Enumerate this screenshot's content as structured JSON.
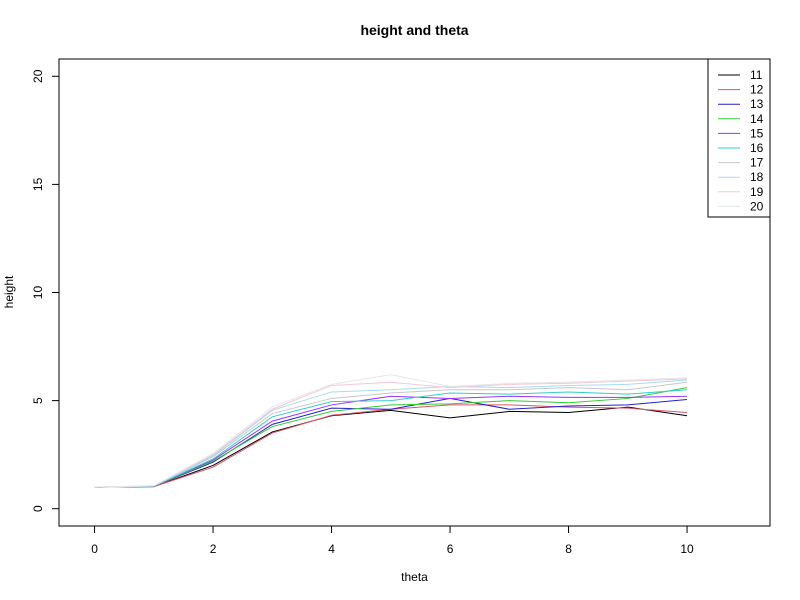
{
  "chart_data": {
    "type": "line",
    "title": "height and theta",
    "xlabel": "theta",
    "ylabel": "height",
    "xlim": [
      -0.6,
      11.4
    ],
    "ylim": [
      -0.8,
      20.8
    ],
    "x_ticks": [
      0,
      2,
      4,
      6,
      8,
      10
    ],
    "y_ticks": [
      0,
      5,
      10,
      15,
      20
    ],
    "grid": false,
    "legend_position": "top-right",
    "x": [
      0,
      1,
      2,
      3,
      4,
      5,
      6,
      7,
      8,
      9,
      10
    ],
    "series": [
      {
        "name": "11",
        "color": "#000000",
        "values": [
          1.0,
          1.02,
          2.0,
          3.55,
          4.3,
          4.55,
          4.2,
          4.5,
          4.45,
          4.7,
          4.3
        ]
      },
      {
        "name": "12",
        "color": "#DF536B",
        "values": [
          1.0,
          1.02,
          1.92,
          3.5,
          4.32,
          4.6,
          4.8,
          4.8,
          4.7,
          4.65,
          4.45
        ]
      },
      {
        "name": "13",
        "color": "#2222CC",
        "values": [
          1.0,
          1.03,
          2.15,
          3.9,
          4.65,
          4.6,
          5.1,
          4.6,
          4.75,
          4.8,
          5.05
        ]
      },
      {
        "name": "14",
        "color": "#33CC33",
        "values": [
          1.0,
          1.03,
          2.2,
          3.8,
          4.5,
          4.8,
          4.85,
          5.0,
          4.9,
          5.1,
          5.6
        ]
      },
      {
        "name": "15",
        "color": "#9933FF",
        "values": [
          1.0,
          1.04,
          2.25,
          4.05,
          4.8,
          5.2,
          5.1,
          5.2,
          5.15,
          5.15,
          5.2
        ]
      },
      {
        "name": "16",
        "color": "#33CCCC",
        "values": [
          1.0,
          1.04,
          2.3,
          4.25,
          4.95,
          5.0,
          5.35,
          5.3,
          5.4,
          5.3,
          5.5
        ]
      },
      {
        "name": "17",
        "color": "#C8C8C8",
        "values": [
          1.0,
          1.05,
          2.4,
          4.4,
          5.1,
          5.35,
          5.5,
          5.5,
          5.6,
          5.5,
          5.85
        ]
      },
      {
        "name": "18",
        "color": "#A8DCF0",
        "values": [
          1.0,
          1.05,
          2.45,
          4.55,
          5.4,
          5.5,
          5.65,
          5.6,
          5.7,
          5.75,
          5.95
        ]
      },
      {
        "name": "19",
        "color": "#F2C8DC",
        "values": [
          1.0,
          1.06,
          2.5,
          4.6,
          5.7,
          5.85,
          5.6,
          5.75,
          5.8,
          5.9,
          6.0
        ]
      },
      {
        "name": "20",
        "color": "#E6E6E6",
        "values": [
          1.0,
          1.06,
          2.55,
          4.7,
          5.75,
          6.2,
          5.65,
          5.8,
          5.85,
          5.95,
          6.05
        ]
      }
    ]
  }
}
